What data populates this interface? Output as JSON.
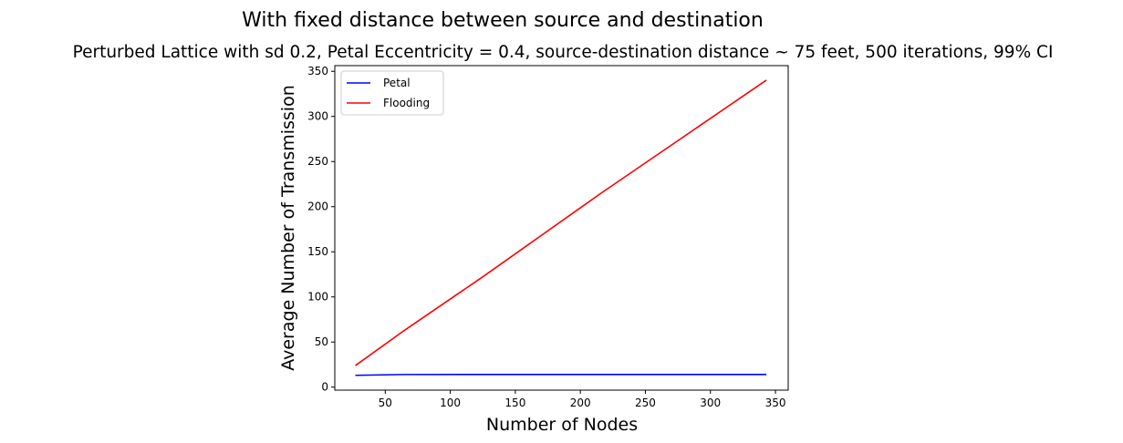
{
  "chart_data": {
    "type": "line",
    "suptitle": "With fixed distance between source and destination",
    "title": "Perturbed Lattice with sd 0.2, Petal Eccentricity = 0.4, source-destination distance ~ 75 feet, 500 iterations, 99% CI",
    "xlabel": "Number of Nodes",
    "ylabel": "Average Number of Transmission",
    "xlim": [
      11.2,
      359.8
    ],
    "ylim": [
      -3.3,
      356.3
    ],
    "xticks": [
      50,
      100,
      150,
      200,
      250,
      300,
      350
    ],
    "yticks": [
      0,
      50,
      100,
      150,
      200,
      250,
      300,
      350
    ],
    "grid": false,
    "legend_position": "upper-left",
    "series": [
      {
        "name": "Petal",
        "color": "#0000ff",
        "x": [
          27,
          64,
          125,
          216,
          343
        ],
        "y": [
          13.1,
          14.0,
          14.1,
          14.1,
          14.1
        ]
      },
      {
        "name": "Flooding",
        "color": "#ff0000",
        "x": [
          27,
          64,
          125,
          216,
          343
        ],
        "y": [
          23.9,
          62.2,
          122.3,
          215.0,
          340.2
        ]
      }
    ]
  }
}
